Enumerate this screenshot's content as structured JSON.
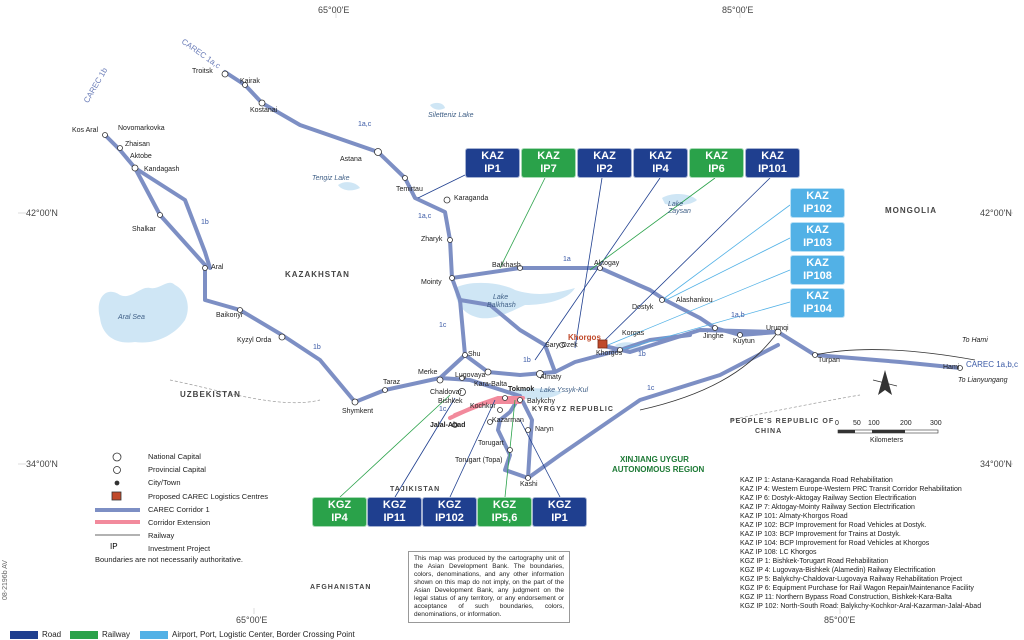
{
  "coordinates": {
    "lon_65_top": "65°00'E",
    "lon_85_top": "85°00'E",
    "lon_65_bottom": "65°00'E",
    "lon_85_bottom": "85°00'E",
    "lat_42_left": "42°00'N",
    "lat_42_right": "42°00'N",
    "lat_34_left": "34°00'N",
    "lat_34_right": "34°00'N"
  },
  "regions": {
    "kazakhstan": "KAZAKHSTAN",
    "uzbekistan": "UZBEKISTAN",
    "mongolia": "MONGOLIA",
    "kyrgyz": "KYRGYZ REPUBLIC",
    "tajikistan": "TAJIKISTAN",
    "afghanistan": "AFGHANISTAN",
    "prc_line1": "PEOPLE'S REPUBLIC OF",
    "prc_line2": "CHINA",
    "xinjiang_line1": "XINJIANG UYGUR",
    "xinjiang_line2": "AUTONOMOUS REGION"
  },
  "lakes": {
    "siletteniz": "Siletteniz Lake",
    "tengiz": "Tengiz Lake",
    "aral_sea": "Aral Sea",
    "balkhash_1": "Lake",
    "balkhash_2": "Balkhash",
    "zaysan_1": "Lake",
    "zaysan_2": "Zaysan",
    "yssyk": "Lake Yssyk-Kul"
  },
  "cities": {
    "troitsk": "Troitsk",
    "kairak": "Kairak",
    "kostanai": "Kostanai",
    "kos_aral": "Kos Aral",
    "novomarkovka": "Novomarkovka",
    "zhaisan": "Zhaisan",
    "aktobe": "Aktobe",
    "kandagash": "Kandagash",
    "astana": "Astana",
    "temirtau": "Temirtau",
    "karaganda": "Karaganda",
    "shalkar": "Shalkar",
    "zharyk": "Zharyk",
    "aral": "Aral",
    "mointy": "Mointy",
    "balkhash": "Balkhash",
    "aktogay": "Aktogay",
    "dostyk": "Dostyk",
    "alashankou": "Alashankou",
    "baikonyr": "Baikonyr",
    "kyzyl_orda": "Kyzyl Orda",
    "shu": "Shu",
    "sary_ozek": "Sary Ozek",
    "khorgos": "Khorgos",
    "korgas": "Korgas",
    "khorgos2": "Khorgos",
    "jinghe": "Jinghe",
    "kuytun": "Kuytun",
    "urumqi": "Urumqi",
    "turpan": "Turpan",
    "hami": "Hami",
    "to_hami": "To Hami",
    "to_lianyungang": "To Lianyungang",
    "merke": "Merke",
    "lugovaya": "Lugovaya",
    "taraz": "Taraz",
    "shymkent": "Shymkent",
    "chaldovar": "Chaldovar",
    "kara_balta": "Kara-Balta",
    "tokmok": "Tokmok",
    "almaty": "Almaty",
    "bishkek": "Bishkek",
    "balykchy": "Balykchy",
    "kochkor": "Kochkor",
    "kazarman": "Kazarman",
    "jalal_abad": "Jalal-Abad",
    "naryn": "Naryn",
    "torugart": "Torugart",
    "torugart_topa": "Torugart (Topa)",
    "kashi": "Kashi"
  },
  "corridor_labels": {
    "carec_1ac": "CAREC 1a,c",
    "carec_1b": "CAREC 1b",
    "carec_1abc": "CAREC 1a,b,c",
    "c1ac_a": "1a,c",
    "c1ac_b": "1a,c",
    "c1a": "1a",
    "c1b_a": "1b",
    "c1b_b": "1b",
    "c1b_c": "1b",
    "c1b_d": "1b",
    "c1c_a": "1c",
    "c1c_b": "1c",
    "c1c_c": "1c",
    "c1ab": "1a,b"
  },
  "badges": {
    "kaz_ip1": {
      "line1": "KAZ",
      "line2": "IP1"
    },
    "kaz_ip7": {
      "line1": "KAZ",
      "line2": "IP7"
    },
    "kaz_ip2": {
      "line1": "KAZ",
      "line2": "IP2"
    },
    "kaz_ip4": {
      "line1": "KAZ",
      "line2": "IP4"
    },
    "kaz_ip6": {
      "line1": "KAZ",
      "line2": "IP6"
    },
    "kaz_ip101": {
      "line1": "KAZ",
      "line2": "IP101"
    },
    "kaz_ip102": {
      "line1": "KAZ",
      "line2": "IP102"
    },
    "kaz_ip103": {
      "line1": "KAZ",
      "line2": "IP103"
    },
    "kaz_ip108": {
      "line1": "KAZ",
      "line2": "IP108"
    },
    "kaz_ip104": {
      "line1": "KAZ",
      "line2": "IP104"
    },
    "kgz_ip4": {
      "line1": "KGZ",
      "line2": "IP4"
    },
    "kgz_ip11": {
      "line1": "KGZ",
      "line2": "IP11"
    },
    "kgz_ip102": {
      "line1": "KGZ",
      "line2": "IP102"
    },
    "kgz_ip56": {
      "line1": "KGZ",
      "line2": "IP5,6"
    },
    "kgz_ip1": {
      "line1": "KGZ",
      "line2": "IP1"
    }
  },
  "legend": {
    "national_capital": "National Capital",
    "provincial_capital": "Provincial Capital",
    "city_town": "City/Town",
    "logistics": "Proposed CAREC Logistics Centres",
    "corridor1": "CAREC Corridor 1",
    "extension": "Corridor Extension",
    "railway": "Railway",
    "investment": "Investment Project",
    "boundaries": "Boundaries are not necessarily authoritative."
  },
  "scale": {
    "ticks": [
      "0",
      "50",
      "100",
      "200",
      "300"
    ],
    "unit": "Kilometers"
  },
  "disclaimer": "This map was produced by the cartography unit of the Asian Development Bank. The boundaries, colors, denominations, and any other information shown on this map do not imply, on the part of the Asian Development Bank, any judgment on the legal status of any territory, or any endorsement or acceptance of such boundaries, colors, denominations, or information.",
  "projects": [
    "KAZ IP 1: Astana-Karaganda Road Rehabilitation",
    "KAZ IP 4: Western Europe-Western PRC Transit Corridor Rehabilitation",
    "KAZ IP 6: Dostyk-Aktogay Railway Section Electrification",
    "KAZ IP 7: Aktogay-Mointy Railway Section Electrification",
    "KAZ IP 101: Almaty-Khorgos Road",
    "KAZ IP 102: BCP Improvement for Road Vehicles at Dostyk.",
    "KAZ IP 103: BCP Improvement for Trains at Dostyk.",
    "KAZ IP 104: BCP Improvement for Road Vehicles at Khorgos",
    "KAZ IP 108: LC Khorgos",
    "KGZ IP 1: Bishkek-Torugart Road Rehabilitation",
    "KGZ IP 4: Lugovaya-Bishkek (Alamedin) Railway Electrification",
    "KGZ IP 5: Balykchy-Chaldovar-Lugovaya Railway Rehabilitation Project",
    "KGZ IP 6: Equipment Purchase for Rail Wagon Repair/Maintenance Facility",
    "KGZ IP 11: Northern Bypass Road Construction, Bishkek-Kara-Balta",
    "KGZ IP 102: North-South Road: Balykchy-Kochkor-Aral-Kazarman-Jalal-Abad"
  ],
  "bottom_legend": {
    "road": "Road",
    "railway": "Railway",
    "airport": "Airport, Port, Logistic Center, Border Crossing Point"
  },
  "map_id": "08-2196b AV",
  "colors": {
    "road": "#1f3f8f",
    "railway": "#2aa24a",
    "airport": "#52b1e6",
    "corridor": "#7d8fc4",
    "extension": "#f28a9c",
    "water": "#cfe6f5"
  }
}
